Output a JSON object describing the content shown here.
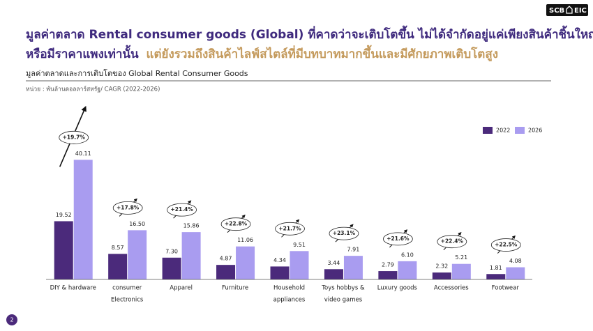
{
  "slide": {
    "headline_1": "มูลค่าตลาด Rental consumer goods (Global) ที่คาดว่าจะเติบโตขึ้น ไม่ได้จำกัดอยู่แค่เพียงสินค้าชิ้นใหญ่",
    "headline_2a": "หรือมีราคาแพงเท่านั้น",
    "headline_2b": "แต่ยังรวมถึงสินค้าไลฟ์สไตล์ที่มีบทบาทมากขึ้นและมีศักยภาพเติบโตสูง",
    "logo": [
      "SCB",
      "EIC"
    ],
    "page_number": "2"
  },
  "chart_data": {
    "type": "bar",
    "title": "มูลค่าตลาดและการเติบโตของ Global Rental Consumer Goods",
    "subtitle": "หน่วย :  พันล้านดอลลาร์สหรัฐ/ CAGR (2022-2026)",
    "categories": [
      [
        "DIY & hardware"
      ],
      [
        "consumer",
        "Electronics"
      ],
      [
        "Apparel"
      ],
      [
        "Furniture"
      ],
      [
        "Household",
        "appliances"
      ],
      [
        "Toys hobbys &",
        "video games"
      ],
      [
        "Luxury goods"
      ],
      [
        "Accessories"
      ],
      [
        "Footwear"
      ]
    ],
    "series": [
      {
        "name": "2022",
        "color": "#4b2a7b",
        "values": [
          19.52,
          8.57,
          7.3,
          4.87,
          4.34,
          3.44,
          2.79,
          2.32,
          1.81
        ],
        "value_labels": [
          "19.52",
          "8.57",
          "7.30",
          "4.87",
          "4.34",
          "3.44",
          "2.79",
          "2.32",
          "1.81"
        ]
      },
      {
        "name": "2026",
        "color": "#a99cf0",
        "values": [
          40.11,
          16.5,
          15.86,
          11.06,
          9.51,
          7.91,
          6.1,
          5.21,
          4.08
        ],
        "value_labels": [
          "40.11",
          "16.50",
          "15.86",
          "11.06",
          "9.51",
          "7.91",
          "6.10",
          "5.21",
          "4.08"
        ]
      }
    ],
    "annotations": [
      "+19.7%",
      "+17.8%",
      "+21.4%",
      "+22.8%",
      "+21.7%",
      "+23.1%",
      "+21.6%",
      "+22.4%",
      "+22.5%"
    ],
    "ylim": [
      0,
      50
    ],
    "legend": "top-right"
  }
}
